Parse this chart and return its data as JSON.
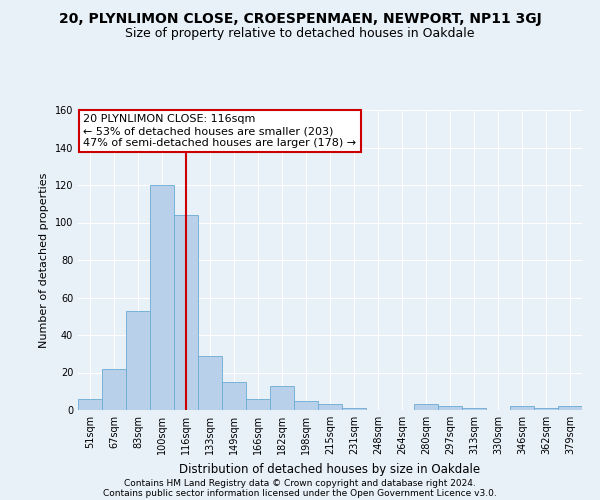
{
  "title1": "20, PLYNLIMON CLOSE, CROESPENMAEN, NEWPORT, NP11 3GJ",
  "title2": "Size of property relative to detached houses in Oakdale",
  "xlabel": "Distribution of detached houses by size in Oakdale",
  "ylabel": "Number of detached properties",
  "categories": [
    "51sqm",
    "67sqm",
    "83sqm",
    "100sqm",
    "116sqm",
    "133sqm",
    "149sqm",
    "166sqm",
    "182sqm",
    "198sqm",
    "215sqm",
    "231sqm",
    "248sqm",
    "264sqm",
    "280sqm",
    "297sqm",
    "313sqm",
    "330sqm",
    "346sqm",
    "362sqm",
    "379sqm"
  ],
  "values": [
    6,
    22,
    53,
    120,
    104,
    29,
    15,
    6,
    13,
    5,
    3,
    1,
    0,
    0,
    3,
    2,
    1,
    0,
    2,
    1,
    2
  ],
  "bar_color": "#b8d0ea",
  "bar_edge_color": "#6aaad4",
  "vline_x_index": 4,
  "vline_color": "#cc0000",
  "annotation_line1": "20 PLYNLIMON CLOSE: 116sqm",
  "annotation_line2": "← 53% of detached houses are smaller (203)",
  "annotation_line3": "47% of semi-detached houses are larger (178) →",
  "annotation_box_facecolor": "#ffffff",
  "annotation_box_edgecolor": "#cc0000",
  "ylim": [
    0,
    160
  ],
  "yticks": [
    0,
    20,
    40,
    60,
    80,
    100,
    120,
    140,
    160
  ],
  "footer1": "Contains HM Land Registry data © Crown copyright and database right 2024.",
  "footer2": "Contains public sector information licensed under the Open Government Licence v3.0.",
  "background_color": "#e8f0f8",
  "plot_bg_color": "#e8f0f8",
  "grid_color": "#ffffff",
  "title1_fontsize": 10,
  "title2_fontsize": 9,
  "xlabel_fontsize": 8.5,
  "ylabel_fontsize": 8,
  "tick_fontsize": 7,
  "annotation_fontsize": 8,
  "footer_fontsize": 6.5
}
